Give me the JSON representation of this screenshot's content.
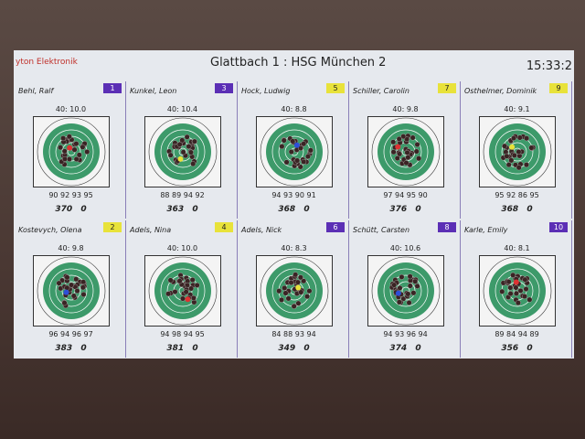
{
  "header": {
    "brand": "yton Elektronik",
    "title": "Glattbach 1 : HSG München 2",
    "clock": "15:33:2"
  },
  "cards": [
    {
      "name": "Behl, Ralf",
      "badge": "1",
      "badge_color": "#5b2fb5",
      "shot": "40:  10.0",
      "series": "90 92 93 95",
      "total": "370",
      "extra": "0"
    },
    {
      "name": "Kunkel, Leon",
      "badge": "3",
      "badge_color": "#5b2fb5",
      "shot": "40:  10.4",
      "series": "88 89 94 92",
      "total": "363",
      "extra": "0"
    },
    {
      "name": "Hock, Ludwig",
      "badge": "5",
      "badge_color": "#e8e23a",
      "shot": "40:  8.8",
      "series": "94 93 90 91",
      "total": "368",
      "extra": "0"
    },
    {
      "name": "Schiller, Carolin",
      "badge": "7",
      "badge_color": "#e8e23a",
      "shot": "40:  9.8",
      "series": "97 94 95 90",
      "total": "376",
      "extra": "0"
    },
    {
      "name": "Osthelmer, Dominik",
      "badge": "9",
      "badge_color": "#e8e23a",
      "shot": "40:  9.1",
      "series": "95 92 86 95",
      "total": "368",
      "extra": "0"
    },
    {
      "name": "Kostevych, Olena",
      "badge": "2",
      "badge_color": "#e8e23a",
      "shot": "40:  9.8",
      "series": "96 94 96 97",
      "total": "383",
      "extra": "0"
    },
    {
      "name": "Adels, Nina",
      "badge": "4",
      "badge_color": "#e8e23a",
      "shot": "40:  10.0",
      "series": "94 98 94 95",
      "total": "381",
      "extra": "0"
    },
    {
      "name": "Adels, Nick",
      "badge": "6",
      "badge_color": "#5b2fb5",
      "shot": "40:  8.3",
      "series": "84 88 93 94",
      "total": "349",
      "extra": "0"
    },
    {
      "name": "Schütt, Carsten",
      "badge": "8",
      "badge_color": "#5b2fb5",
      "shot": "40:  10.6",
      "series": "94 93 96 94",
      "total": "374",
      "extra": "0"
    },
    {
      "name": "Karle, Emily",
      "badge": "10",
      "badge_color": "#5b2fb5",
      "shot": "40:  8.1",
      "series": "89 84 94 89",
      "total": "356",
      "extra": "0"
    }
  ]
}
